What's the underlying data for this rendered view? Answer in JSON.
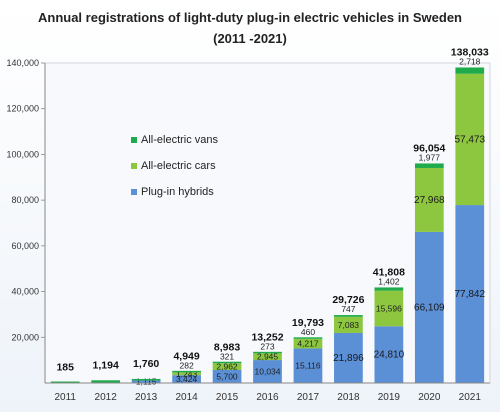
{
  "chart_data": {
    "type": "bar",
    "stacked": true,
    "title": "Annual registrations of light-duty plug-in electric vehicles in  Sweden",
    "subtitle": "(2011 -2021)",
    "categories": [
      "2011",
      "2012",
      "2013",
      "2014",
      "2015",
      "2016",
      "2017",
      "2018",
      "2019",
      "2020",
      "2021"
    ],
    "series": [
      {
        "name": "Plug-in hybrids",
        "color": "#5b8fd6",
        "values": [
          0,
          0,
          1115,
          3424,
          5700,
          10034,
          15116,
          21896,
          24810,
          66109,
          77842
        ],
        "labels": [
          "",
          "",
          "1,115",
          "3,424",
          "5,700",
          "10,034",
          "15,116",
          "21,896",
          "24,810",
          "66,109",
          "77,842"
        ]
      },
      {
        "name": "All-electric cars",
        "color": "#8dc63f",
        "values": [
          0,
          0,
          0,
          1243,
          2962,
          2945,
          4217,
          7083,
          15596,
          27968,
          57473
        ],
        "labels": [
          "",
          "",
          "",
          "1,243",
          "2,962",
          "2,945",
          "4,217",
          "7,083",
          "15,596",
          "27,968",
          "57,473"
        ]
      },
      {
        "name": "All-electric vans",
        "color": "#1faa4b",
        "values": [
          185,
          1194,
          645,
          282,
          321,
          273,
          460,
          747,
          1402,
          1977,
          2718
        ],
        "labels": [
          "",
          "",
          "",
          "282",
          "321",
          "273",
          "460",
          "747",
          "1,402",
          "1,977",
          "2,718"
        ]
      }
    ],
    "totals": [
      "185",
      "1,194",
      "1,760",
      "4,949",
      "8,983",
      "13,252",
      "19,793",
      "29,726",
      "41,808",
      "96,054",
      "138,033"
    ],
    "ylim": [
      0,
      140000
    ],
    "yticks": [
      20000,
      40000,
      60000,
      80000,
      100000,
      120000,
      140000
    ],
    "ytick_labels": [
      "20,000",
      "40,000",
      "60,000",
      "80,000",
      "100,000",
      "120,000",
      "140,000"
    ],
    "grid": false,
    "legend_position": "left"
  }
}
